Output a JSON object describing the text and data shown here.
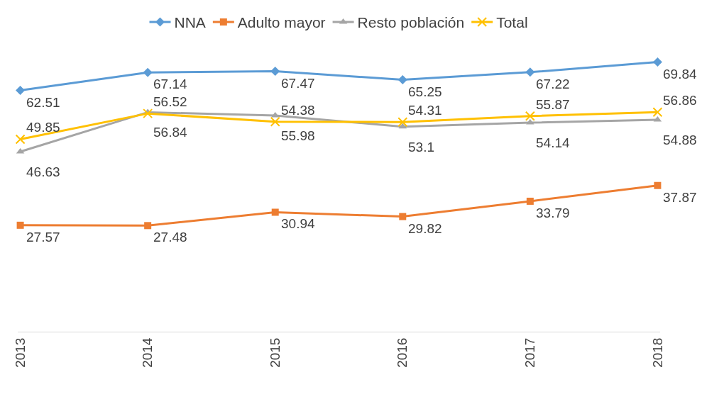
{
  "chart_data": {
    "type": "line",
    "categories": [
      "2013",
      "2014",
      "2015",
      "2016",
      "2017",
      "2018"
    ],
    "series": [
      {
        "name": "NNA",
        "color": "#5b9bd5",
        "marker": "diamond",
        "values": [
          62.51,
          67.14,
          67.47,
          65.25,
          67.22,
          69.84
        ]
      },
      {
        "name": "Adulto mayor",
        "color": "#ed7d31",
        "marker": "square",
        "values": [
          27.57,
          27.48,
          30.94,
          29.82,
          33.79,
          37.87
        ]
      },
      {
        "name": "Resto población",
        "color": "#a5a5a5",
        "marker": "triangle",
        "values": [
          46.63,
          56.84,
          55.98,
          53.1,
          54.14,
          54.88
        ]
      },
      {
        "name": "Total",
        "color": "#ffc000",
        "marker": "cross",
        "values": [
          49.85,
          56.52,
          54.38,
          54.31,
          55.87,
          56.86
        ]
      }
    ],
    "data_labels": true,
    "legend": "top",
    "grid": false
  }
}
